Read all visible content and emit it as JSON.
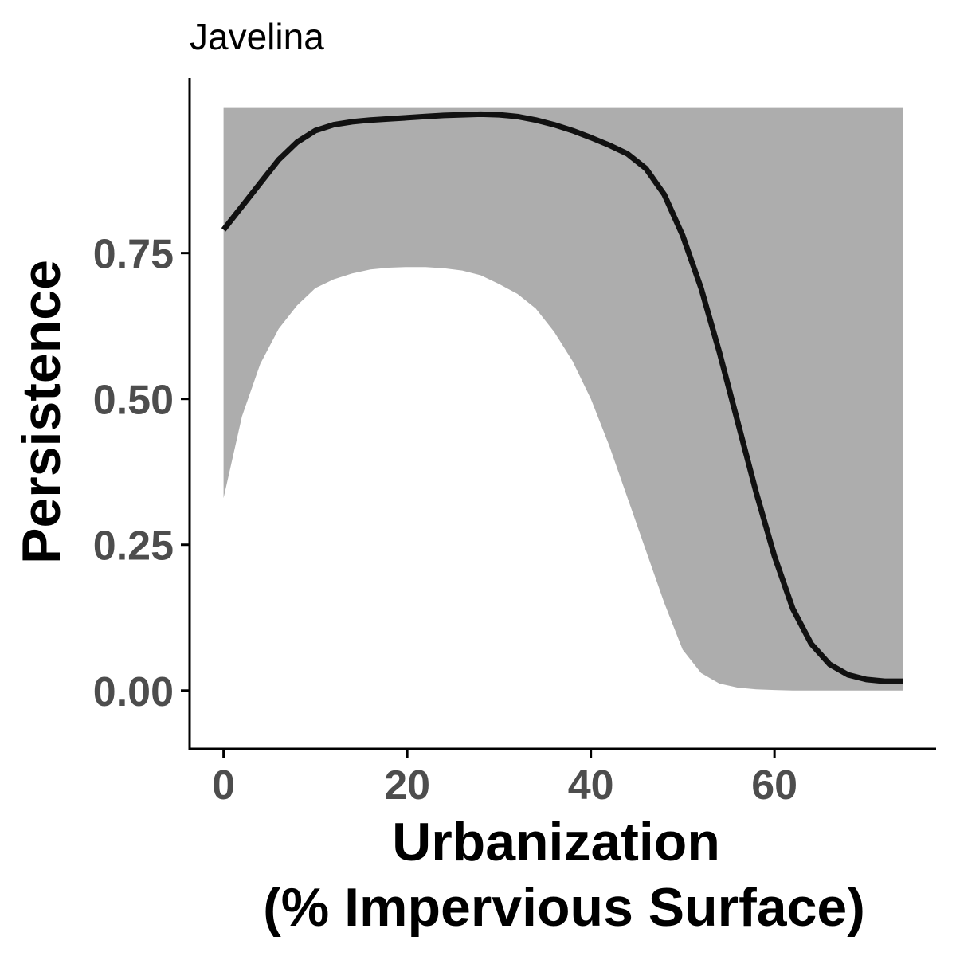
{
  "chart_data": {
    "type": "line",
    "title": "Javelina",
    "xlabel_lines": [
      "Urbanization",
      "(% Impervious Surface)"
    ],
    "ylabel": "Persistence",
    "xlim": [
      -3.7,
      77.6
    ],
    "ylim": [
      -0.1,
      1.05
    ],
    "x_ticks": [
      0,
      20,
      40,
      60
    ],
    "x_tick_labels": [
      "0",
      "20",
      "40",
      "60"
    ],
    "y_ticks": [
      0,
      0.25,
      0.5,
      0.75
    ],
    "y_tick_labels": [
      "0.00",
      "0.25",
      "0.50",
      "0.75"
    ],
    "grid": false,
    "legend": false,
    "colors": {
      "line": "#111111",
      "ribbon": "#adadad",
      "axis": "#000000",
      "tick_text": "#4d4d4d"
    },
    "series": [
      {
        "x": [
          0,
          2,
          4,
          6,
          8,
          10,
          12,
          14,
          16,
          18,
          20,
          22,
          24,
          26,
          28,
          30,
          32,
          34,
          36,
          38,
          40,
          42,
          44,
          46,
          48,
          50,
          52,
          54,
          56,
          58,
          60,
          62,
          64,
          66,
          68,
          70,
          72,
          74
        ],
        "y": [
          0.79,
          0.83,
          0.87,
          0.91,
          0.94,
          0.96,
          0.97,
          0.975,
          0.978,
          0.98,
          0.982,
          0.984,
          0.986,
          0.987,
          0.988,
          0.987,
          0.984,
          0.978,
          0.97,
          0.96,
          0.948,
          0.935,
          0.92,
          0.895,
          0.85,
          0.78,
          0.69,
          0.58,
          0.46,
          0.34,
          0.23,
          0.14,
          0.08,
          0.045,
          0.027,
          0.019,
          0.016,
          0.016
        ],
        "lower": [
          0.33,
          0.47,
          0.56,
          0.62,
          0.66,
          0.69,
          0.705,
          0.715,
          0.722,
          0.725,
          0.726,
          0.726,
          0.724,
          0.72,
          0.712,
          0.697,
          0.68,
          0.655,
          0.615,
          0.565,
          0.5,
          0.42,
          0.33,
          0.24,
          0.15,
          0.07,
          0.03,
          0.012,
          0.005,
          0.002,
          0.001,
          0.0,
          0.0,
          0.0,
          0.0,
          0.0,
          0.0,
          0.0
        ],
        "upper": [
          1.0,
          1.0,
          1.0,
          1.0,
          1.0,
          1.0,
          1.0,
          1.0,
          1.0,
          1.0,
          1.0,
          1.0,
          1.0,
          1.0,
          1.0,
          1.0,
          1.0,
          1.0,
          1.0,
          1.0,
          1.0,
          1.0,
          1.0,
          1.0,
          1.0,
          1.0,
          1.0,
          1.0,
          1.0,
          1.0,
          1.0,
          1.0,
          1.0,
          1.0,
          1.0,
          1.0,
          1.0,
          1.0
        ]
      }
    ]
  }
}
